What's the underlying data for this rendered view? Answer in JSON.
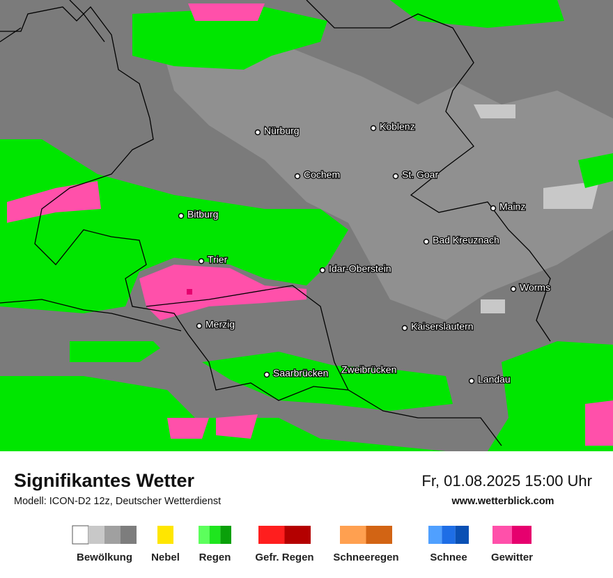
{
  "title": "Signifikantes Wetter",
  "subtitle": "Modell: ICON-D2 12z, Deutscher Wetterdienst",
  "datetime": "Fr, 01.08.2025 15:00 Uhr",
  "website": "www.wetterblick.com",
  "cities": [
    "Nürburg",
    "Koblenz",
    "Cochem",
    "St. Goar",
    "Bitburg",
    "Mainz",
    "Bad Kreuznach",
    "Trier",
    "Idar-Oberstein",
    "Worms",
    "Merzig",
    "Kaiserslautern",
    "Saarbrücken",
    "Zweibrücken",
    "Landau"
  ],
  "legend": [
    {
      "name": "Bewölkung",
      "colors": [
        "#ffffff",
        "#c8c8c8",
        "#a0a0a0",
        "#7d7d7d"
      ]
    },
    {
      "name": "Nebel",
      "colors": [
        "#ffe600"
      ]
    },
    {
      "name": "Regen",
      "colors": [
        "#5cff5c",
        "#1ee61e",
        "#0aa00a"
      ]
    },
    {
      "name": "Gefr. Regen",
      "colors": [
        "#ff1e1e",
        "#b40000"
      ]
    },
    {
      "name": "Schneeregen",
      "colors": [
        "#ffa050",
        "#d26414"
      ]
    },
    {
      "name": "Schnee",
      "colors": [
        "#50a0ff",
        "#1e6ee6",
        "#0a50b4"
      ]
    },
    {
      "name": "Gewitter",
      "colors": [
        "#ff50aa",
        "#e6006e"
      ]
    }
  ]
}
